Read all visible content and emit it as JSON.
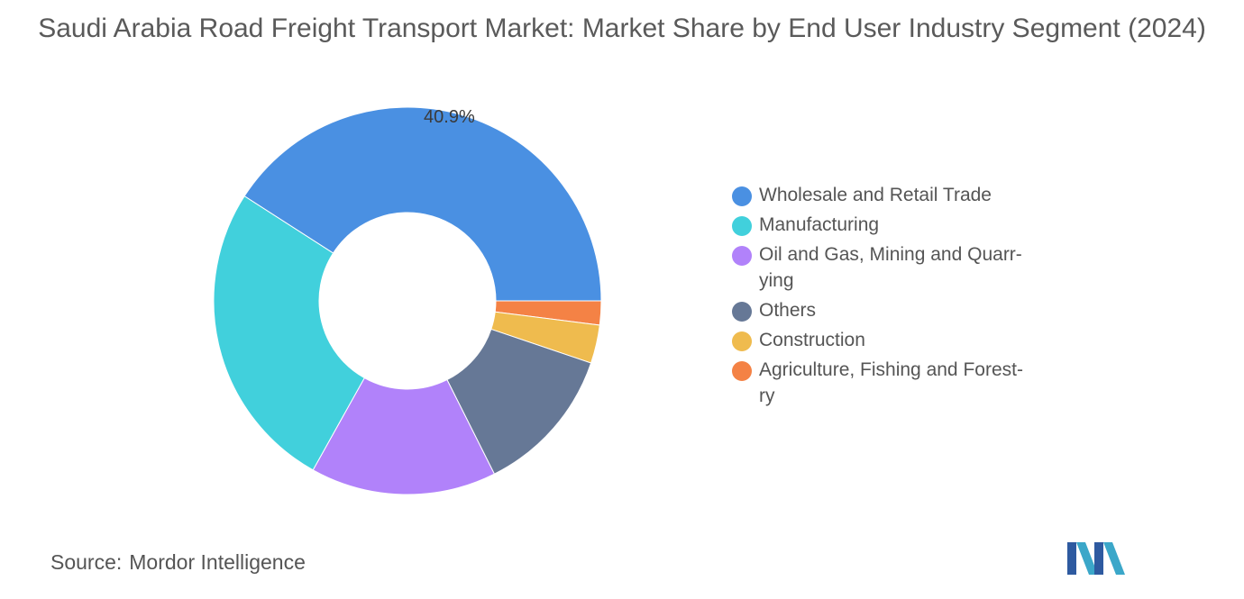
{
  "title": "Saudi Arabia Road Freight Transport Market: Market Share by End User Industry Segment (2024)",
  "source_label": "Source:",
  "source_value": "Mordor Intelligence",
  "chart_data": {
    "type": "pie",
    "donut": true,
    "title": "Saudi Arabia Road Freight Transport Market: Market Share by End User Industry Segment (2024)",
    "legend_position": "right",
    "slices": [
      {
        "label": "Wholesale and Retail Trade",
        "value": 40.9,
        "color": "#4a90e2",
        "data_label": "40.9%"
      },
      {
        "label": "Manufacturing",
        "value": 26.0,
        "color": "#41d0dc",
        "data_label": ""
      },
      {
        "label": "Oil and Gas, Mining and Quarrying",
        "value": 15.5,
        "color": "#b182fa",
        "data_label": ""
      },
      {
        "label": "Others",
        "value": 12.4,
        "color": "#667896",
        "data_label": ""
      },
      {
        "label": "Construction",
        "value": 3.2,
        "color": "#efbb4e",
        "data_label": ""
      },
      {
        "label": "Agriculture, Fishing and Forestry",
        "value": 2.0,
        "color": "#f48245",
        "data_label": ""
      }
    ]
  },
  "legend_labels": [
    "Wholesale and Retail Trade",
    "Manufacturing",
    "Oil and Gas, Mining and Quarr-\nying",
    "Others",
    "Construction",
    "Agriculture, Fishing and Forest-\nry"
  ]
}
